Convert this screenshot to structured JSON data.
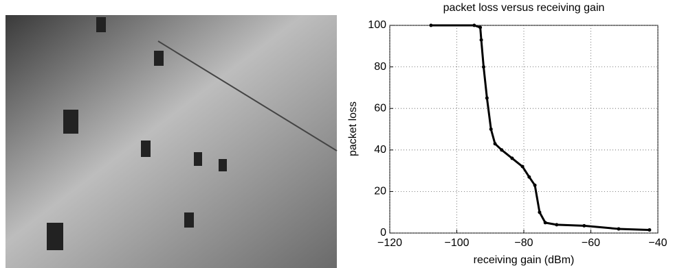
{
  "chart_data": {
    "type": "line",
    "title": "packet loss versus receiving gain",
    "xlabel": "receiving gain (dBm)",
    "ylabel": "packet loss",
    "x": [
      -107.7,
      -94.8,
      -93,
      -92.7,
      -92,
      -91,
      -89.8,
      -88.6,
      -86.6,
      -83.5,
      -80.4,
      -78.4,
      -76.7,
      -75.3,
      -73.6,
      -70.2,
      -62,
      -51.7,
      -42.5
    ],
    "series": [
      {
        "color": "#000000",
        "values": [
          100,
          100,
          99,
          93,
          80,
          65,
          50,
          43,
          40,
          36,
          32,
          27,
          23,
          10,
          5,
          4,
          3.5,
          2,
          1.5
        ]
      }
    ],
    "xlim": [
      -120,
      -40
    ],
    "xticks": [
      {
        "value": -120,
        "label": "−120"
      },
      {
        "value": -100,
        "label": "−100"
      },
      {
        "value": -80,
        "label": "−80"
      },
      {
        "value": -60,
        "label": "−60"
      },
      {
        "value": -40,
        "label": "−40"
      }
    ],
    "ylim": [
      0,
      100
    ],
    "yticks": [
      0,
      20,
      40,
      60,
      80,
      100
    ],
    "grid": true
  }
}
